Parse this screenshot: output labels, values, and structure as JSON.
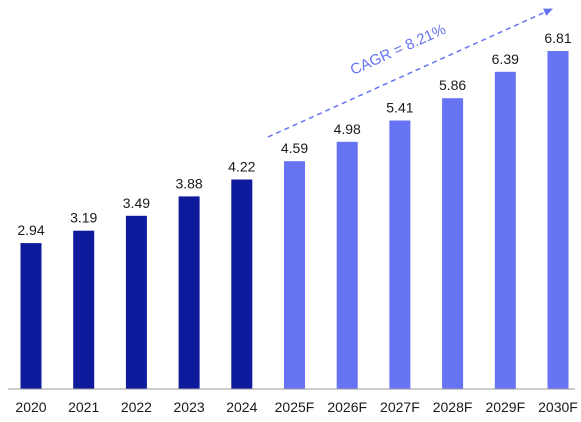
{
  "chart_data": {
    "type": "bar",
    "categories": [
      "2020",
      "2021",
      "2022",
      "2023",
      "2024",
      "2025F",
      "2026F",
      "2027F",
      "2028F",
      "2029F",
      "2030F"
    ],
    "values": [
      2.94,
      3.19,
      3.49,
      3.88,
      4.22,
      4.59,
      4.98,
      5.41,
      5.86,
      6.39,
      6.81
    ],
    "value_labels": [
      "2.94",
      "3.19",
      "3.49",
      "3.88",
      "4.22",
      "4.59",
      "4.98",
      "5.41",
      "5.86",
      "6.39",
      "6.81"
    ],
    "historical_count": 5,
    "colors": {
      "historical": "#0d1a9c",
      "forecast": "#6673f2",
      "axis": "#999999",
      "annotation": "#6673f2"
    },
    "annotation": {
      "text": "CAGR = 8.21%",
      "arrow": "dashed-up-right"
    },
    "title": "",
    "xlabel": "",
    "ylabel": "",
    "ylim": [
      0,
      6.81
    ],
    "grid": false,
    "legend": "none"
  }
}
